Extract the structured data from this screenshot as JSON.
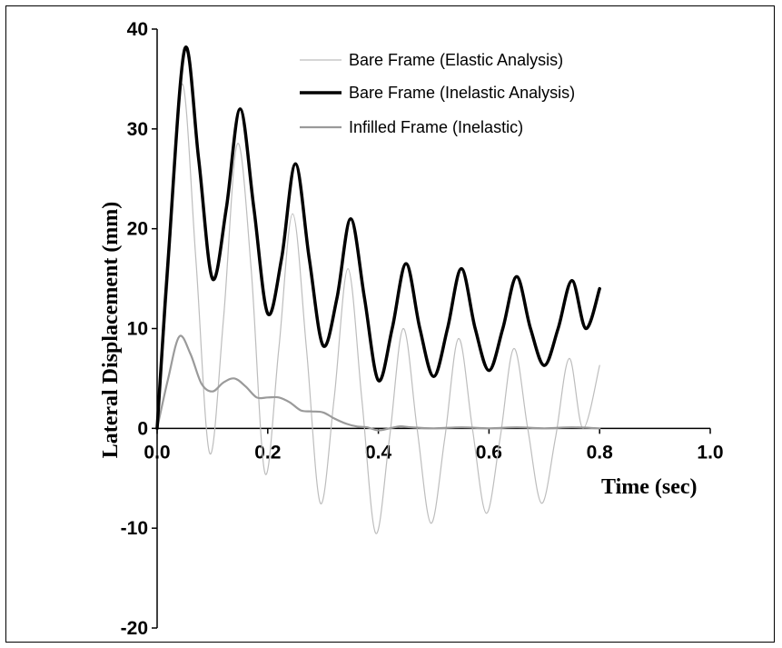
{
  "chart_data": {
    "type": "line",
    "title": "",
    "xlabel": "Time (sec)",
    "ylabel": "Lateral Displacement (mm)",
    "xlim": [
      0.0,
      1.0
    ],
    "ylim": [
      -20,
      40
    ],
    "x_ticks": [
      "0.0",
      "0.2",
      "0.4",
      "0.6",
      "0.8",
      "1.0"
    ],
    "y_ticks": [
      "40",
      "30",
      "20",
      "10",
      "0",
      "-10",
      "-20"
    ],
    "grid": false,
    "legend_position": "top-right",
    "series": [
      {
        "name": "Bare Frame (Elastic Analysis)",
        "color": "#bdbdbd",
        "style": "thin",
        "x": [
          0.0,
          0.02,
          0.045,
          0.07,
          0.095,
          0.12,
          0.145,
          0.17,
          0.195,
          0.22,
          0.245,
          0.27,
          0.295,
          0.32,
          0.345,
          0.37,
          0.395,
          0.42,
          0.445,
          0.47,
          0.495,
          0.52,
          0.545,
          0.57,
          0.595,
          0.62,
          0.645,
          0.67,
          0.695,
          0.72,
          0.745,
          0.77,
          0.8
        ],
        "values": [
          0,
          15,
          34.5,
          17,
          -2.5,
          11,
          28.5,
          16,
          -4.5,
          8,
          21.5,
          8,
          -7.5,
          3,
          16,
          3,
          -10.5,
          -1,
          10,
          0,
          -9.5,
          -1,
          9,
          0,
          -8.5,
          -1,
          8,
          0,
          -7.5,
          -1,
          7,
          0,
          6.3
        ]
      },
      {
        "name": "Bare Frame (Inelastic Analysis)",
        "color": "#000000",
        "style": "thick",
        "x": [
          0.0,
          0.02,
          0.05,
          0.075,
          0.1,
          0.125,
          0.15,
          0.175,
          0.2,
          0.225,
          0.25,
          0.275,
          0.3,
          0.325,
          0.35,
          0.375,
          0.4,
          0.425,
          0.45,
          0.475,
          0.5,
          0.525,
          0.55,
          0.575,
          0.6,
          0.625,
          0.65,
          0.675,
          0.7,
          0.725,
          0.75,
          0.775,
          0.8
        ],
        "values": [
          0,
          17,
          38,
          27,
          15,
          22,
          32,
          22,
          11.5,
          17,
          26.5,
          17,
          8.3,
          13,
          21,
          13,
          4.8,
          10,
          16.5,
          10,
          5.2,
          10,
          16,
          10,
          5.8,
          10,
          15.2,
          10,
          6.3,
          10,
          14.8,
          10,
          14
        ]
      },
      {
        "name": "Infilled Frame (Inelastic)",
        "color": "#9a9a9a",
        "style": "medium",
        "x": [
          0.0,
          0.02,
          0.04,
          0.06,
          0.08,
          0.1,
          0.12,
          0.14,
          0.16,
          0.18,
          0.2,
          0.22,
          0.24,
          0.26,
          0.28,
          0.3,
          0.32,
          0.34,
          0.36,
          0.38,
          0.4,
          0.42,
          0.44,
          0.46,
          0.5,
          0.55,
          0.6,
          0.65,
          0.7,
          0.75,
          0.8
        ],
        "values": [
          0,
          5,
          9.2,
          7.5,
          4.5,
          3.7,
          4.6,
          5,
          4.2,
          3.1,
          3.1,
          3.1,
          2.6,
          1.8,
          1.7,
          1.6,
          1.0,
          0.5,
          0.2,
          0.1,
          -0.2,
          0.0,
          0.2,
          0.1,
          0.0,
          0.1,
          0.0,
          0.1,
          0.0,
          0.1,
          0.0
        ]
      }
    ]
  }
}
